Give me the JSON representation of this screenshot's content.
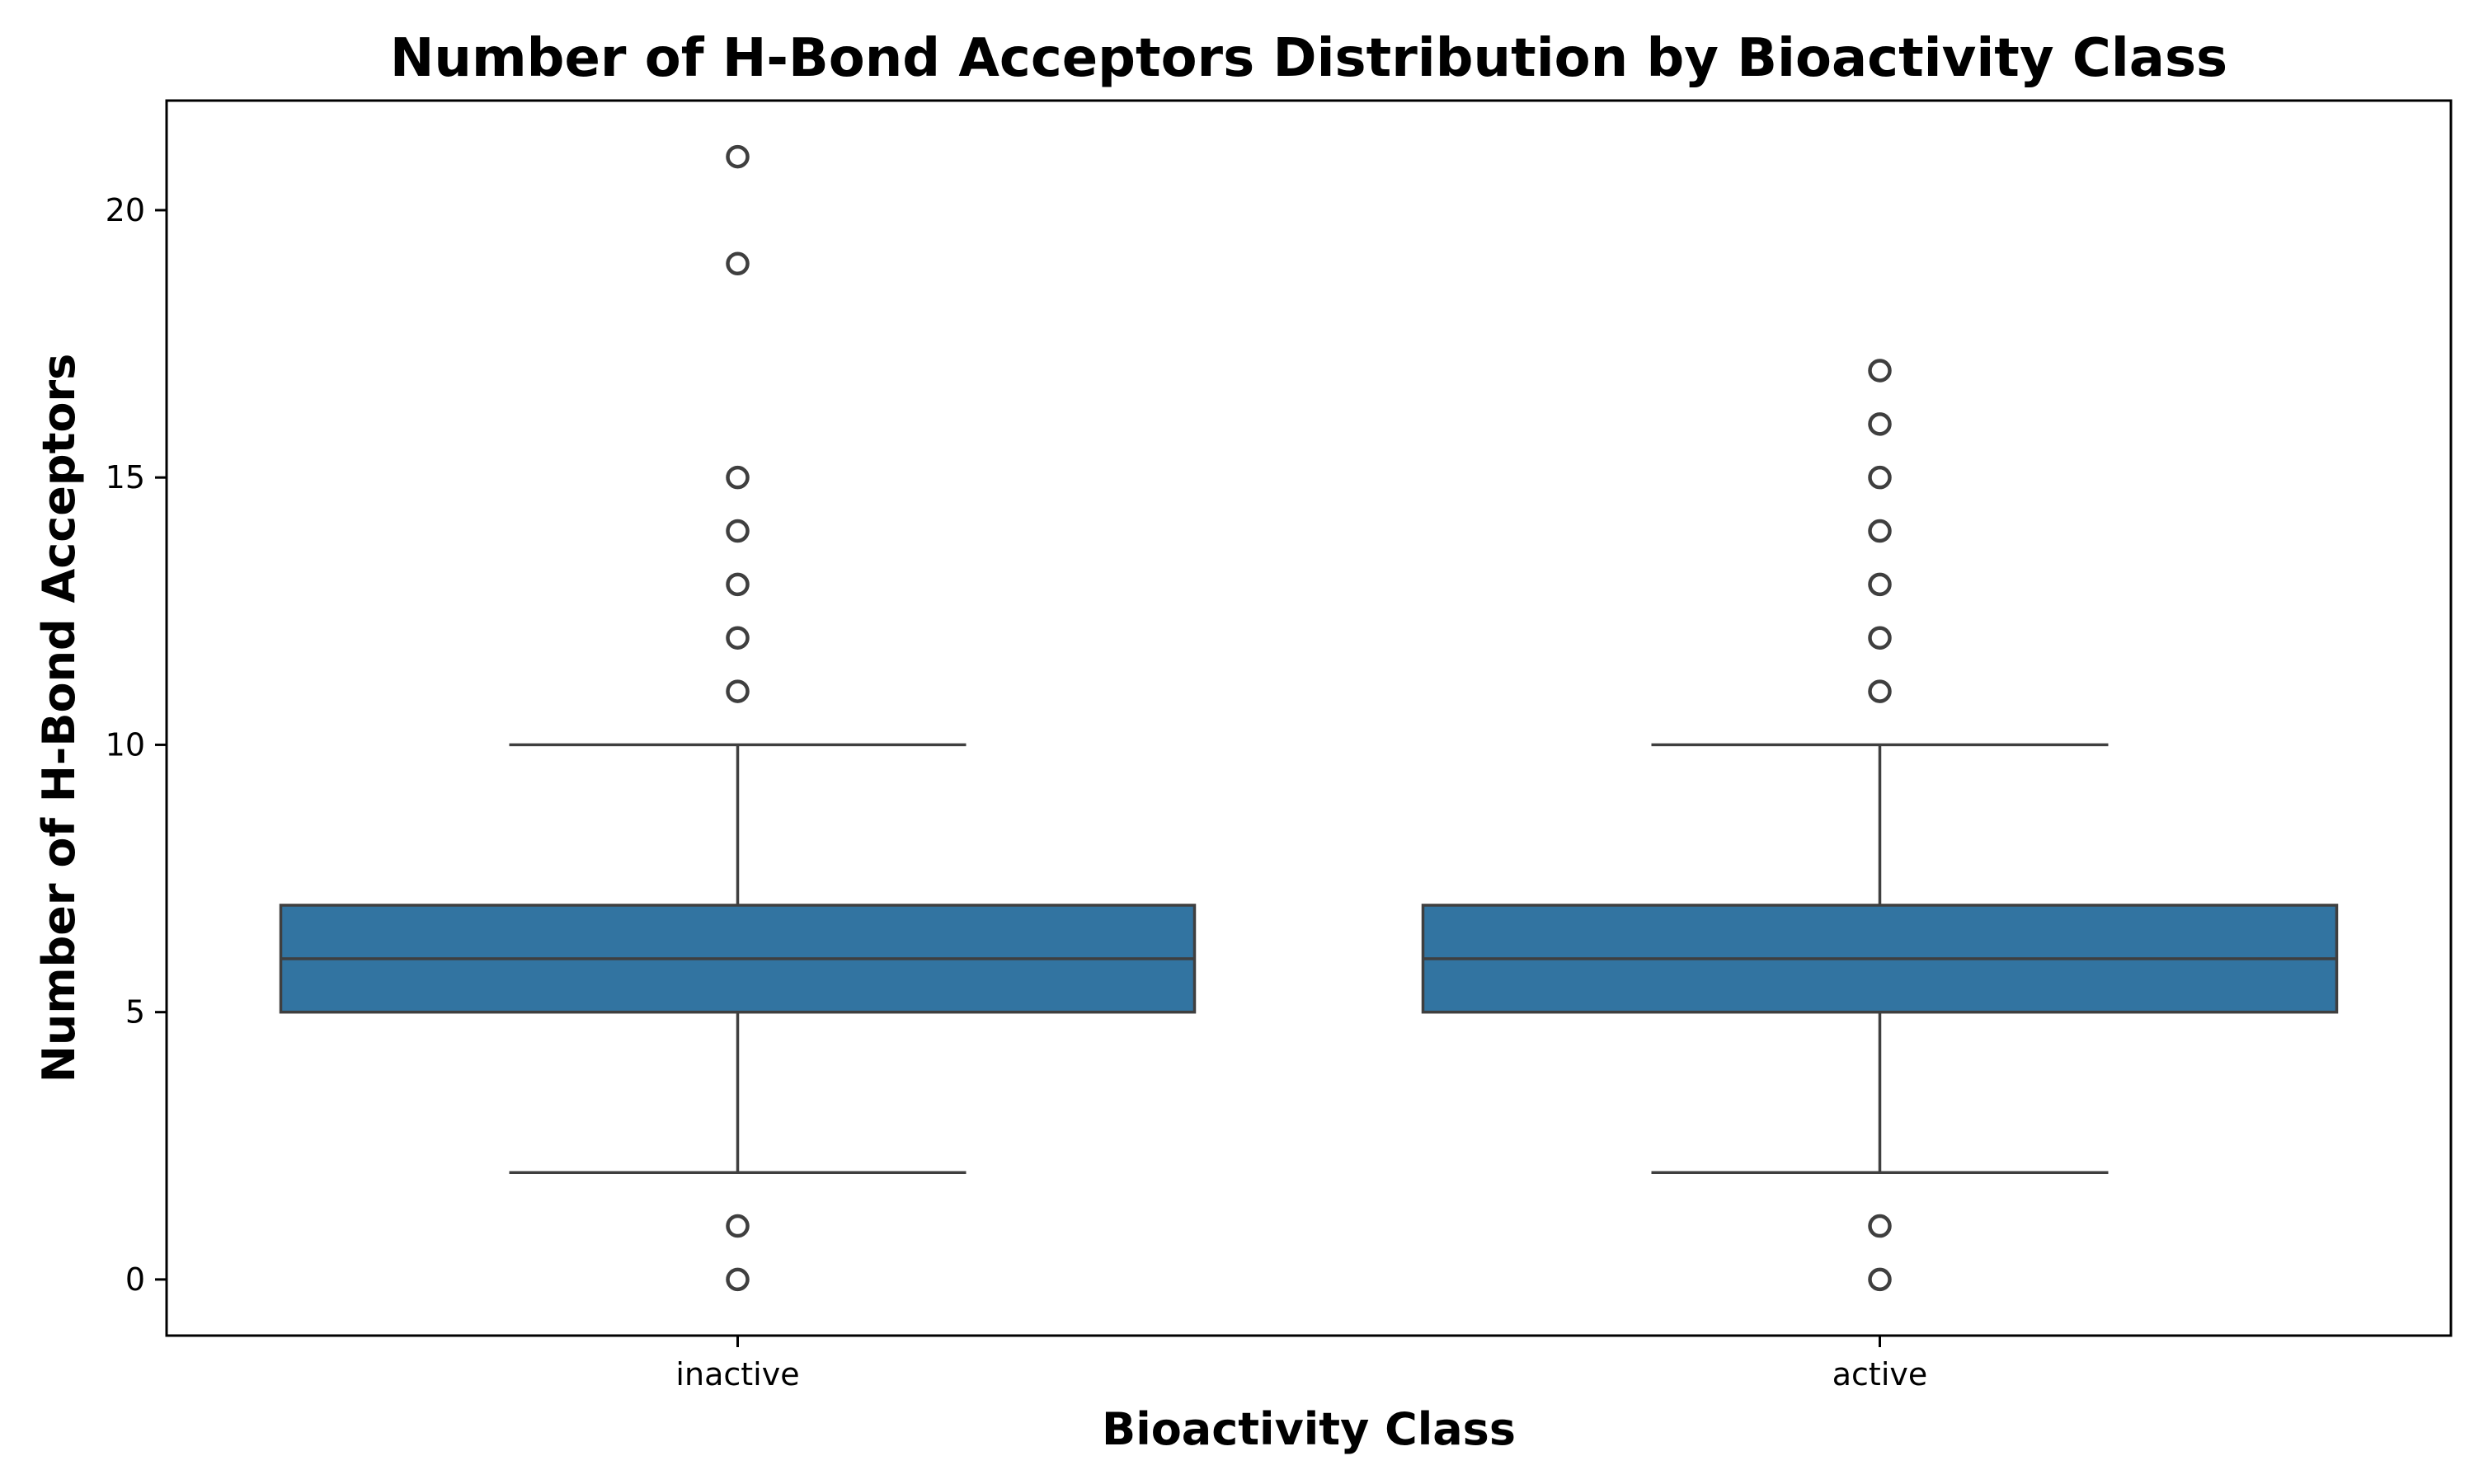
{
  "chart_data": {
    "type": "box",
    "title": "Number of H-Bond Acceptors Distribution by Bioactivity Class",
    "xlabel": "Bioactivity Class",
    "ylabel": "Number of H-Bond Acceptors",
    "categories": [
      "inactive",
      "active"
    ],
    "ylim": [
      -1.05,
      22.05
    ],
    "yticks": [
      0,
      5,
      10,
      15,
      20
    ],
    "grid": false,
    "legend": "none",
    "boxes": [
      {
        "category": "inactive",
        "whisker_low": 2,
        "q1": 5,
        "median": 6,
        "q3": 7,
        "whisker_high": 10,
        "outliers": [
          0,
          1,
          11,
          12,
          13,
          14,
          15,
          19,
          21
        ]
      },
      {
        "category": "active",
        "whisker_low": 2,
        "q1": 5,
        "median": 6,
        "q3": 7,
        "whisker_high": 10,
        "outliers": [
          0,
          1,
          11,
          12,
          13,
          14,
          15,
          16,
          17
        ]
      }
    ],
    "colors": {
      "box_fill": "#3274a1",
      "line": "#3f3f3f",
      "axes": "#000000"
    }
  }
}
